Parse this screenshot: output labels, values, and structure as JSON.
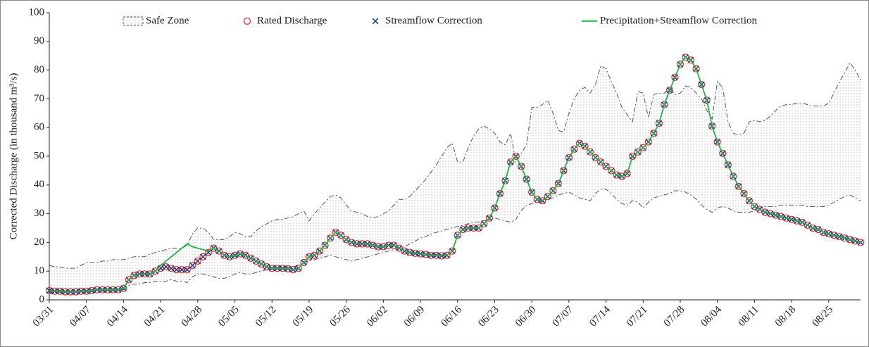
{
  "chart_data": {
    "type": "line",
    "y_label": "Corrected Discharge (in thousand m³/s)",
    "categories": [
      "03/31",
      null,
      null,
      null,
      null,
      null,
      null,
      "04/07",
      null,
      null,
      null,
      null,
      null,
      null,
      "04/14",
      null,
      null,
      null,
      null,
      null,
      null,
      "04/21",
      null,
      null,
      null,
      null,
      null,
      null,
      "04/28",
      null,
      null,
      null,
      null,
      null,
      null,
      "05/05",
      null,
      null,
      null,
      null,
      null,
      null,
      "05/12",
      null,
      null,
      null,
      null,
      null,
      null,
      "05/19",
      null,
      null,
      null,
      null,
      null,
      null,
      "05/26",
      null,
      null,
      null,
      null,
      null,
      null,
      "06/02",
      null,
      null,
      null,
      null,
      null,
      null,
      "06/09",
      null,
      null,
      null,
      null,
      null,
      null,
      "06/16",
      null,
      null,
      null,
      null,
      null,
      null,
      "06/23",
      null,
      null,
      null,
      null,
      null,
      null,
      "06/30",
      null,
      null,
      null,
      null,
      null,
      null,
      "07/07",
      null,
      null,
      null,
      null,
      null,
      null,
      "07/14",
      null,
      null,
      null,
      null,
      null,
      null,
      "07/21",
      null,
      null,
      null,
      null,
      null,
      null,
      "07/28",
      null,
      null,
      null,
      null,
      null,
      null,
      "08/04",
      null,
      null,
      null,
      null,
      null,
      null,
      "08/11",
      null,
      null,
      null,
      null,
      null,
      null,
      "08/18",
      null,
      null,
      null,
      null,
      null,
      null,
      "08/25",
      null,
      null,
      null,
      null,
      null,
      null
    ],
    "safe_zone": {
      "name": "Safe Zone",
      "color": "#555555",
      "upper": [
        12,
        11.5,
        11.5,
        11,
        11,
        11,
        12,
        13,
        13,
        13,
        13.5,
        13.5,
        14,
        14,
        14,
        14.5,
        15,
        15,
        15,
        16,
        16.5,
        17,
        17.5,
        18,
        18,
        18,
        19,
        23,
        25,
        25,
        23.5,
        21,
        21,
        21,
        22,
        23.5,
        23,
        22,
        22,
        24,
        25.5,
        26.5,
        27.5,
        28,
        28,
        28.5,
        29,
        30,
        31,
        27.5,
        30,
        32,
        34,
        36,
        36.5,
        35.5,
        33,
        31,
        30.5,
        30,
        29,
        28.5,
        29,
        30,
        31,
        33,
        35,
        35,
        36,
        38,
        40,
        42,
        44.5,
        47,
        50,
        53,
        54.5,
        48,
        48,
        53,
        57,
        59.5,
        60.5,
        59.5,
        58,
        55,
        54,
        58,
        48,
        51,
        54,
        67,
        67,
        68,
        69.5,
        65,
        59,
        58.5,
        65,
        70,
        73,
        74,
        72,
        75,
        81.5,
        80.5,
        76,
        72,
        67,
        64.5,
        62,
        72.5,
        72,
        63.5,
        71.5,
        72,
        72,
        74,
        71.5,
        72,
        74.5,
        74,
        72,
        70,
        66,
        63,
        76,
        74,
        62,
        58,
        57.5,
        58,
        62,
        62.5,
        62,
        62.5,
        64,
        66,
        67.5,
        68,
        68,
        68.5,
        68.5,
        68,
        67.5,
        67.5,
        67.5,
        68.5,
        72,
        76,
        79,
        82.5,
        80,
        76.5
      ],
      "lower": [
        2.5,
        2.5,
        2.5,
        2.5,
        2.5,
        2.8,
        3,
        3,
        3,
        3,
        3,
        3,
        3,
        3,
        3.5,
        5,
        5.5,
        5.5,
        6,
        6,
        6.5,
        6.5,
        6.5,
        7,
        6.5,
        6.5,
        6,
        8,
        9,
        9,
        8.5,
        8,
        7.5,
        7.5,
        8,
        9,
        9.5,
        9,
        9,
        9.5,
        10,
        10.5,
        11,
        11,
        11.5,
        11.5,
        11.5,
        12,
        13,
        13.5,
        14,
        14.5,
        15,
        15.5,
        15,
        14.5,
        14,
        13.5,
        14,
        14.5,
        15,
        15.5,
        16,
        16.5,
        17,
        17.5,
        18,
        18.5,
        19.5,
        20.5,
        21.5,
        22,
        23,
        23.5,
        24,
        24.5,
        25,
        25.5,
        26,
        26.5,
        27,
        27,
        27.5,
        28,
        28.5,
        28,
        27.5,
        27,
        28,
        31,
        33,
        33.5,
        34,
        34.5,
        35,
        35.5,
        36.5,
        37,
        37.5,
        36.5,
        35.5,
        35,
        34.5,
        37,
        38.5,
        38.5,
        37,
        35,
        33.5,
        33,
        34.5,
        34,
        32,
        34,
        35.5,
        36,
        36.5,
        37,
        38,
        38,
        37.5,
        36.5,
        35,
        33,
        31.5,
        30.5,
        32,
        32.5,
        32,
        31,
        30.5,
        30.5,
        30.5,
        31,
        32,
        32.5,
        32.5,
        32.5,
        33,
        33,
        33,
        33,
        33,
        32.5,
        32.5,
        32.5,
        32.5,
        33,
        34,
        35,
        36,
        36.5,
        35.5,
        34.5
      ]
    },
    "series": [
      {
        "name": "Rated Discharge",
        "color": "#e8333a",
        "marker": "circle",
        "values": [
          3.2,
          3,
          3,
          2.8,
          2.8,
          2.8,
          3,
          3,
          3.2,
          3.5,
          3.5,
          3.5,
          3.5,
          3.5,
          4,
          7,
          8.5,
          9,
          9,
          9,
          10,
          11,
          11.5,
          11,
          10.5,
          10.5,
          10.5,
          12,
          13.5,
          15,
          16.5,
          18,
          17,
          15.5,
          15,
          15.5,
          16,
          15.5,
          14.5,
          13.5,
          12.5,
          11.5,
          11,
          11,
          11,
          10.8,
          10.5,
          11,
          13,
          15,
          15.5,
          17,
          19,
          21.5,
          23.5,
          22.5,
          21,
          20,
          19.5,
          19.5,
          19.5,
          19,
          18.5,
          18.5,
          19,
          19,
          18,
          17,
          16.5,
          16.2,
          16,
          15.8,
          15.5,
          15.5,
          15.3,
          15.5,
          17,
          22.5,
          24.5,
          25,
          25,
          25,
          26.5,
          28.5,
          32,
          37,
          41.5,
          48,
          50,
          46.5,
          42,
          37.5,
          35,
          34.5,
          36,
          38,
          40.5,
          45,
          49.5,
          52.5,
          54.5,
          53.5,
          51.5,
          49.5,
          48,
          46.5,
          45,
          43.5,
          43,
          44,
          50,
          51.5,
          53,
          55,
          58,
          61.5,
          68,
          73,
          77.5,
          82,
          84.5,
          83.5,
          80.5,
          75,
          69.5,
          60.5,
          55,
          51,
          47,
          43,
          39.5,
          37,
          34.5,
          32.5,
          31.5,
          30.5,
          30,
          29.5,
          29,
          28.5,
          28,
          27.5,
          27,
          26,
          25,
          24.5,
          23.5,
          23,
          22.5,
          22,
          21.5,
          21,
          20.5,
          20
        ]
      },
      {
        "name": "Streamflow Correction",
        "color": "#1f3a7a",
        "marker": "x",
        "values": [
          3.2,
          3,
          3,
          2.8,
          2.8,
          2.8,
          3,
          3,
          3.2,
          3.5,
          3.5,
          3.5,
          3.5,
          3.5,
          4,
          7,
          8.5,
          9,
          9,
          9,
          10,
          11,
          11.5,
          11,
          10.5,
          10.5,
          10.5,
          12,
          13.5,
          15,
          16.5,
          18,
          17,
          15.5,
          15,
          15.5,
          16,
          15.5,
          14.5,
          13.5,
          12.5,
          11.5,
          11,
          11,
          11,
          10.8,
          10.5,
          11,
          13,
          15,
          15.5,
          17,
          19,
          21.5,
          23.5,
          22.5,
          21,
          20,
          19.5,
          19.5,
          19.5,
          19,
          18.5,
          18.5,
          19,
          19,
          18,
          17,
          16.5,
          16.2,
          16,
          15.8,
          15.5,
          15.5,
          15.3,
          15.5,
          17,
          22.5,
          24.5,
          25,
          25,
          25,
          26.5,
          28.5,
          32,
          37,
          41.5,
          48,
          50,
          46.5,
          42,
          37.5,
          35,
          34.5,
          36,
          38,
          40.5,
          45,
          49.5,
          52.5,
          54.5,
          53.5,
          51.5,
          49.5,
          48,
          46.5,
          45,
          43.5,
          43,
          44,
          50,
          51.5,
          53,
          55,
          58,
          61.5,
          68,
          73,
          77.5,
          82,
          84.5,
          83.5,
          80.5,
          75,
          69.5,
          60.5,
          55,
          51,
          47,
          43,
          39.5,
          37,
          34.5,
          32.5,
          31.5,
          30.5,
          30,
          29.5,
          29,
          28.5,
          28,
          27.5,
          27,
          26,
          25,
          24.5,
          23.5,
          23,
          22.5,
          22,
          21.5,
          21,
          20.5,
          20
        ]
      },
      {
        "name": "Precipitation+Streamflow Correction",
        "color": "#22b14c",
        "marker": "line",
        "values": [
          3.2,
          3,
          3,
          2.8,
          2.8,
          2.8,
          3,
          3,
          3.2,
          3.5,
          3.5,
          3.5,
          3.5,
          3.5,
          4,
          7,
          8.5,
          9,
          9,
          9,
          10,
          12,
          13.5,
          15,
          16.5,
          18,
          19.5,
          18.5,
          18,
          17.5,
          17,
          18,
          17,
          15.5,
          15,
          15.5,
          16,
          15.5,
          14.5,
          13.5,
          12.5,
          11.5,
          11,
          11,
          11,
          10.8,
          10.5,
          11,
          13,
          15,
          15.5,
          17,
          19,
          21.5,
          23.5,
          22.5,
          21,
          20,
          19.5,
          19.5,
          19.5,
          19,
          18.5,
          18.5,
          19,
          19,
          18,
          17,
          16.5,
          16.2,
          16,
          15.8,
          15.5,
          15.5,
          15.3,
          15.5,
          17,
          22.5,
          24.5,
          25,
          25,
          25,
          26.5,
          28.5,
          32,
          37,
          41.5,
          48,
          50,
          46.5,
          42,
          37.5,
          35,
          34.5,
          36,
          38,
          40.5,
          45,
          49.5,
          52.5,
          54.5,
          53.5,
          51.5,
          49.5,
          48,
          46.5,
          45,
          43.5,
          43,
          44,
          50,
          51.5,
          53,
          55,
          58,
          61.5,
          68,
          73,
          77.5,
          82,
          84.5,
          83.5,
          80.5,
          75,
          69.5,
          60.5,
          55,
          51,
          47,
          43,
          39.5,
          37,
          34.5,
          32.5,
          31.5,
          30.5,
          30,
          29.5,
          29,
          28.5,
          28,
          27.5,
          27,
          26,
          25,
          24.5,
          23.5,
          23,
          22.5,
          22,
          21.5,
          21,
          20.5,
          20
        ]
      }
    ],
    "ylim": [
      0,
      100
    ],
    "yticks": [
      0,
      10,
      20,
      30,
      40,
      50,
      60,
      70,
      80,
      90,
      100
    ],
    "grid": false,
    "legend": "top"
  }
}
